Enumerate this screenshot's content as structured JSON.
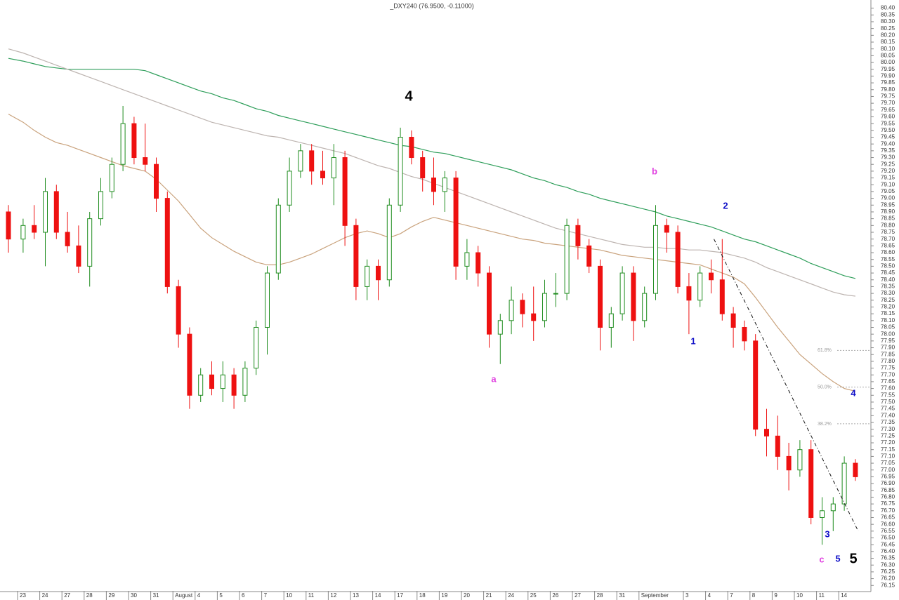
{
  "chart_data": {
    "type": "candlestick",
    "title": "_DXY240 (76.9500, -0.11000)",
    "categories": [
      null,
      "23",
      null,
      "24",
      null,
      "27",
      null,
      "28",
      null,
      "29",
      null,
      "30",
      null,
      "31",
      null,
      "August",
      null,
      "4",
      null,
      "5",
      null,
      "6",
      null,
      "7",
      null,
      "10",
      null,
      "11",
      null,
      "12",
      null,
      "13",
      null,
      "14",
      null,
      "17",
      null,
      "18",
      null,
      "19",
      null,
      "20",
      null,
      "21",
      null,
      "24",
      null,
      "25",
      null,
      "26",
      null,
      "27",
      null,
      "28",
      null,
      "31",
      null,
      "September",
      null,
      null,
      null,
      "3",
      null,
      "4",
      null,
      "7",
      null,
      "8",
      null,
      "9",
      null,
      "10",
      null,
      "11",
      null,
      "14",
      null
    ],
    "ohlc": [
      [
        78.9,
        78.95,
        78.6,
        78.7
      ],
      [
        78.7,
        78.85,
        78.6,
        78.8
      ],
      [
        78.8,
        78.95,
        78.7,
        78.75
      ],
      [
        78.75,
        79.15,
        78.5,
        79.05
      ],
      [
        79.05,
        79.1,
        78.7,
        78.75
      ],
      [
        78.75,
        78.9,
        78.6,
        78.65
      ],
      [
        78.65,
        78.8,
        78.45,
        78.5
      ],
      [
        78.5,
        78.9,
        78.35,
        78.85
      ],
      [
        78.85,
        79.15,
        78.8,
        79.05
      ],
      [
        79.05,
        79.3,
        79.0,
        79.25
      ],
      [
        79.25,
        79.68,
        79.2,
        79.55
      ],
      [
        79.55,
        79.6,
        79.25,
        79.3
      ],
      [
        79.3,
        79.55,
        79.2,
        79.25
      ],
      [
        79.25,
        79.3,
        78.9,
        79.0
      ],
      [
        79.0,
        79.05,
        78.3,
        78.35
      ],
      [
        78.35,
        78.4,
        77.9,
        78.0
      ],
      [
        78.0,
        78.05,
        77.45,
        77.55
      ],
      [
        77.55,
        77.75,
        77.5,
        77.7
      ],
      [
        77.7,
        77.8,
        77.55,
        77.6
      ],
      [
        77.6,
        77.8,
        77.5,
        77.7
      ],
      [
        77.7,
        77.75,
        77.45,
        77.55
      ],
      [
        77.55,
        77.8,
        77.5,
        77.75
      ],
      [
        77.75,
        78.1,
        77.7,
        78.05
      ],
      [
        78.05,
        78.5,
        77.85,
        78.45
      ],
      [
        78.45,
        79.0,
        78.4,
        78.95
      ],
      [
        78.95,
        79.3,
        78.9,
        79.2
      ],
      [
        79.2,
        79.4,
        79.15,
        79.35
      ],
      [
        79.35,
        79.4,
        79.1,
        79.2
      ],
      [
        79.2,
        79.35,
        79.1,
        79.15
      ],
      [
        79.15,
        79.4,
        78.95,
        79.3
      ],
      [
        79.3,
        79.35,
        78.65,
        78.8
      ],
      [
        78.8,
        78.85,
        78.25,
        78.35
      ],
      [
        78.35,
        78.55,
        78.25,
        78.5
      ],
      [
        78.5,
        78.55,
        78.25,
        78.4
      ],
      [
        78.4,
        79.0,
        78.35,
        78.95
      ],
      [
        78.95,
        79.52,
        78.9,
        79.45
      ],
      [
        79.45,
        79.5,
        79.25,
        79.3
      ],
      [
        79.3,
        79.35,
        79.05,
        79.15
      ],
      [
        79.15,
        79.3,
        78.95,
        79.05
      ],
      [
        79.05,
        79.2,
        78.9,
        79.15
      ],
      [
        79.15,
        79.2,
        78.4,
        78.5
      ],
      [
        78.5,
        78.7,
        78.4,
        78.6
      ],
      [
        78.6,
        78.65,
        78.35,
        78.45
      ],
      [
        78.45,
        78.5,
        77.9,
        78.0
      ],
      [
        78.0,
        78.15,
        77.78,
        78.1
      ],
      [
        78.1,
        78.35,
        78.0,
        78.25
      ],
      [
        78.25,
        78.3,
        78.05,
        78.15
      ],
      [
        78.15,
        78.35,
        77.95,
        78.1
      ],
      [
        78.1,
        78.4,
        78.05,
        78.3
      ],
      [
        78.3,
        78.45,
        78.2,
        78.3
      ],
      [
        78.3,
        78.85,
        78.25,
        78.8
      ],
      [
        78.8,
        78.85,
        78.55,
        78.65
      ],
      [
        78.65,
        78.7,
        78.45,
        78.5
      ],
      [
        78.5,
        78.55,
        77.88,
        78.05
      ],
      [
        78.05,
        78.2,
        77.9,
        78.15
      ],
      [
        78.15,
        78.5,
        78.1,
        78.45
      ],
      [
        78.45,
        78.5,
        77.95,
        78.1
      ],
      [
        78.1,
        78.35,
        78.05,
        78.3
      ],
      [
        78.3,
        78.95,
        78.25,
        78.8
      ],
      [
        78.8,
        78.85,
        78.6,
        78.75
      ],
      [
        78.75,
        78.8,
        78.3,
        78.35
      ],
      [
        78.35,
        78.45,
        78.0,
        78.25
      ],
      [
        78.25,
        78.5,
        78.2,
        78.45
      ],
      [
        78.45,
        78.55,
        78.3,
        78.4
      ],
      [
        78.4,
        78.7,
        78.1,
        78.15
      ],
      [
        78.15,
        78.2,
        77.9,
        78.05
      ],
      [
        78.05,
        78.1,
        77.88,
        77.95
      ],
      [
        77.95,
        78.0,
        77.25,
        77.3
      ],
      [
        77.3,
        77.45,
        77.1,
        77.25
      ],
      [
        77.25,
        77.4,
        77.0,
        77.1
      ],
      [
        77.1,
        77.2,
        76.85,
        77.0
      ],
      [
        77.0,
        77.22,
        76.95,
        77.15
      ],
      [
        77.15,
        77.22,
        76.6,
        76.65
      ],
      [
        76.65,
        76.8,
        76.45,
        76.7
      ],
      [
        76.7,
        76.8,
        76.55,
        76.75
      ],
      [
        76.75,
        77.1,
        76.7,
        77.05
      ],
      [
        77.05,
        77.08,
        76.92,
        76.95
      ]
    ],
    "up_color": "#1e8c1e",
    "down_color": "#ee1111",
    "series": [
      {
        "color": "#2e9e5a",
        "values": [
          80.03,
          80.01,
          79.99,
          79.97,
          79.96,
          79.95,
          79.95,
          79.95,
          79.95,
          79.95,
          79.95,
          79.95,
          79.94,
          79.91,
          79.88,
          79.85,
          79.82,
          79.79,
          79.77,
          79.74,
          79.72,
          79.69,
          79.66,
          79.64,
          79.61,
          79.59,
          79.57,
          79.55,
          79.53,
          79.51,
          79.49,
          79.47,
          79.45,
          79.43,
          79.41,
          79.39,
          79.38,
          79.36,
          79.34,
          79.33,
          79.31,
          79.29,
          79.27,
          79.25,
          79.23,
          79.21,
          79.18,
          79.15,
          79.13,
          79.1,
          79.08,
          79.05,
          79.03,
          79.0,
          78.98,
          78.96,
          78.94,
          78.92,
          78.9,
          78.87,
          78.85,
          78.83,
          78.81,
          78.79,
          78.76,
          78.73,
          78.7,
          78.68,
          78.65,
          78.62,
          78.59,
          78.56,
          78.52,
          78.49,
          78.46,
          78.43,
          78.41
        ]
      },
      {
        "color": "#bdb4b0",
        "values": [
          80.1,
          80.07,
          80.04,
          80.01,
          79.98,
          79.95,
          79.92,
          79.89,
          79.86,
          79.83,
          79.8,
          79.77,
          79.74,
          79.71,
          79.68,
          79.65,
          79.62,
          79.59,
          79.56,
          79.54,
          79.52,
          79.5,
          79.48,
          79.46,
          79.45,
          79.43,
          79.41,
          79.39,
          79.37,
          79.35,
          79.33,
          79.3,
          79.27,
          79.24,
          79.22,
          79.19,
          79.16,
          79.14,
          79.11,
          79.08,
          79.05,
          79.02,
          78.99,
          78.96,
          78.93,
          78.9,
          78.87,
          78.84,
          78.81,
          78.78,
          78.76,
          78.74,
          78.72,
          78.7,
          78.68,
          78.66,
          78.65,
          78.64,
          78.64,
          78.63,
          78.63,
          78.62,
          78.62,
          78.61,
          78.6,
          78.58,
          78.56,
          78.53,
          78.49,
          78.46,
          78.43,
          78.4,
          78.37,
          78.34,
          78.31,
          78.29,
          78.28
        ]
      },
      {
        "color": "#c9a27c",
        "values": [
          79.62,
          79.56,
          79.5,
          79.45,
          79.41,
          79.39,
          79.36,
          79.33,
          79.3,
          79.27,
          79.24,
          79.22,
          79.2,
          79.14,
          79.06,
          78.98,
          78.88,
          78.78,
          78.71,
          78.66,
          78.61,
          78.57,
          78.53,
          78.51,
          78.51,
          78.53,
          78.56,
          78.59,
          78.63,
          78.67,
          78.71,
          78.74,
          78.76,
          78.74,
          78.71,
          78.74,
          78.79,
          78.83,
          78.86,
          78.84,
          78.82,
          78.8,
          78.78,
          78.76,
          78.74,
          78.72,
          78.7,
          78.69,
          78.67,
          78.66,
          78.65,
          78.64,
          78.63,
          78.62,
          78.6,
          78.58,
          78.57,
          78.56,
          78.55,
          78.54,
          78.53,
          78.52,
          78.51,
          78.48,
          78.45,
          78.42,
          78.37,
          78.27,
          78.16,
          78.05,
          77.95,
          77.85,
          77.78,
          77.71,
          77.65,
          77.6,
          77.58
        ]
      }
    ],
    "fib_levels": [
      {
        "value": 77.88,
        "label": "61.8%"
      },
      {
        "value": 77.61,
        "label": "50.0%"
      },
      {
        "value": 77.34,
        "label": "38.2%"
      }
    ],
    "trendline": [
      78.7,
      76.55
    ],
    "annotations": [
      "4",
      "b",
      "2",
      "1",
      "a",
      "4",
      "3",
      "c",
      "5",
      "5"
    ],
    "ylim": [
      76.11,
      80.46
    ],
    "yticks": [
      {
        "value": 80.4,
        "label": "80.40"
      },
      80.35,
      {
        "value": 80.3,
        "label": "80.30"
      },
      80.25,
      {
        "value": 80.2,
        "label": "80.20"
      },
      80.15,
      {
        "value": 80.1,
        "label": "80.10"
      },
      80.05,
      {
        "value": 80,
        "label": "80.00"
      },
      79.95,
      {
        "value": 79.9,
        "label": "79.90"
      },
      79.85,
      {
        "value": 79.8,
        "label": "79.80"
      },
      79.75,
      {
        "value": 79.7,
        "label": "79.70"
      },
      79.65,
      {
        "value": 79.6,
        "label": "79.60"
      },
      79.55,
      {
        "value": 79.5,
        "label": "79.50"
      },
      79.45,
      {
        "value": 79.4,
        "label": "79.40"
      },
      79.35,
      {
        "value": 79.3,
        "label": "79.30"
      },
      79.25,
      {
        "value": 79.2,
        "label": "79.20"
      },
      79.15,
      {
        "value": 79.1,
        "label": "79.10"
      },
      79.05,
      {
        "value": 79,
        "label": "79.00"
      },
      78.95,
      {
        "value": 78.9,
        "label": "78.90"
      },
      78.85,
      {
        "value": 78.8,
        "label": "78.80"
      },
      78.75,
      {
        "value": 78.7,
        "label": "78.70"
      },
      78.65,
      {
        "value": 78.6,
        "label": "78.60"
      },
      78.55,
      {
        "value": 78.5,
        "label": "78.50"
      },
      78.45,
      {
        "value": 78.4,
        "label": "78.40"
      },
      78.35,
      {
        "value": 78.3,
        "label": "78.30"
      },
      78.25,
      {
        "value": 78.2,
        "label": "78.20"
      },
      78.15,
      {
        "value": 78.1,
        "label": "78.10"
      },
      78.05,
      {
        "value": 78,
        "label": "78.00"
      },
      77.95,
      {
        "value": 77.9,
        "label": "77.90"
      },
      77.85,
      {
        "value": 77.8,
        "label": "77.80"
      },
      77.75,
      {
        "value": 77.7,
        "label": "77.70"
      },
      77.65,
      {
        "value": 77.6,
        "label": "77.60"
      },
      77.55,
      {
        "value": 77.5,
        "label": "77.50"
      },
      77.45,
      {
        "value": 77.4,
        "label": "77.40"
      },
      77.35,
      {
        "value": 77.3,
        "label": "77.30"
      },
      77.25,
      {
        "value": 77.2,
        "label": "77.20"
      },
      77.15,
      {
        "value": 77.1,
        "label": "77.10"
      },
      77.05,
      {
        "value": 77,
        "label": "77.00"
      },
      76.95,
      {
        "value": 76.9,
        "label": "76.90"
      },
      76.85,
      {
        "value": 76.8,
        "label": "76.80"
      },
      76.75,
      {
        "value": 76.7,
        "label": "76.70"
      },
      76.65,
      {
        "value": 76.6,
        "label": "76.60"
      },
      76.55,
      {
        "value": 76.5,
        "label": "76.50"
      },
      76.45,
      {
        "value": 76.4,
        "label": "76.40"
      },
      76.35,
      {
        "value": 76.3,
        "label": "76.30"
      },
      76.25,
      {
        "value": 76.2,
        "label": "76.20"
      },
      76.15
    ]
  }
}
